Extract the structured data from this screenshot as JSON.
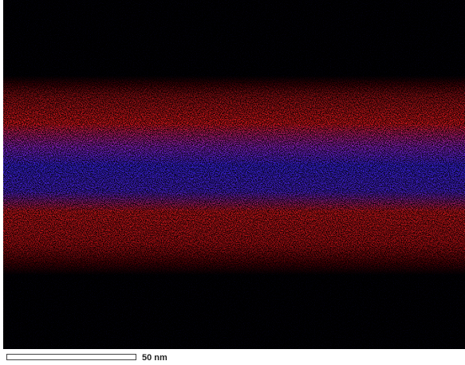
{
  "scale_bar": {
    "label": "50 nm"
  }
}
